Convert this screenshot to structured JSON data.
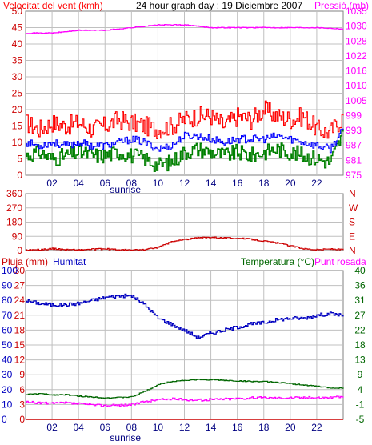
{
  "header": {
    "wind_label": "Velocitat del vent (kmh)",
    "title": "24 hour graph day : 19 Diciembre 2007",
    "pressure_label": "Pressió (mb)"
  },
  "colors": {
    "frame": "#808080",
    "grid": "#c0c0c0",
    "axis_text": "#000080",
    "wind": "#ff0000",
    "gust": "#ff0000",
    "average": "#0000ff",
    "green": "#008000",
    "pressure": "#ff00ff",
    "direction": "#cc0000",
    "humidity": "#0000c0",
    "temperature": "#006600",
    "dewpoint": "#ff00ff",
    "rain": "#cc0000"
  },
  "chart_data": [
    {
      "type": "line",
      "title": "24 hour graph day : 19 Diciembre 2007",
      "ylabel": "Velocitat del vent (kmh)",
      "y2label": "Pressió (mb)",
      "x_hours": [
        0,
        24
      ],
      "x_ticks": [
        "02",
        "04",
        "06",
        "08",
        "10",
        "12",
        "14",
        "16",
        "18",
        "20",
        "22"
      ],
      "sunrise_hour": 7.3,
      "sunrise_label": "sunrise",
      "ylim": [
        0,
        50
      ],
      "y_ticks": [
        "0",
        "5",
        "10",
        "15",
        "20",
        "25",
        "30",
        "35",
        "40",
        "45",
        "50"
      ],
      "y2lim": [
        975,
        1035
      ],
      "y2_ticks": [
        "975",
        "981",
        "987",
        "993",
        "999",
        "1005",
        "1010",
        "1016",
        "1022",
        "1028",
        "1030",
        "1035"
      ],
      "series": [
        {
          "key": "gust",
          "x": [
            0,
            1,
            2,
            3,
            4,
            5,
            6,
            7,
            8,
            9,
            10,
            11,
            12,
            13,
            14,
            15,
            16,
            17,
            18,
            19,
            20,
            21,
            22,
            23,
            24
          ],
          "y": [
            16,
            14,
            16,
            15,
            16,
            14,
            15,
            17,
            16,
            15,
            14,
            15,
            17,
            18,
            18,
            15,
            18,
            17,
            20,
            18,
            17,
            18,
            14,
            13,
            18
          ]
        },
        {
          "key": "average",
          "x": [
            0,
            1,
            2,
            3,
            4,
            5,
            6,
            7,
            8,
            9,
            10,
            11,
            12,
            13,
            14,
            15,
            16,
            17,
            18,
            19,
            20,
            21,
            22,
            23,
            24
          ],
          "y": [
            10,
            9,
            10,
            9,
            10,
            9,
            9,
            10,
            11,
            10,
            8,
            9,
            12,
            12,
            11,
            10,
            11,
            11,
            11,
            12,
            11,
            10,
            9,
            8,
            14
          ]
        },
        {
          "key": "lull",
          "x": [
            0,
            1,
            2,
            3,
            4,
            5,
            6,
            7,
            8,
            9,
            10,
            11,
            12,
            13,
            14,
            15,
            16,
            17,
            18,
            19,
            20,
            21,
            22,
            23,
            24
          ],
          "y": [
            6,
            7,
            5,
            6,
            7,
            6,
            6,
            7,
            6,
            5,
            3,
            4,
            7,
            8,
            7,
            6,
            7,
            6,
            7,
            8,
            7,
            6,
            5,
            4,
            13
          ]
        },
        {
          "key": "pressure",
          "axis": "y2",
          "x": [
            0,
            2,
            4,
            6,
            8,
            10,
            11,
            12,
            14,
            16,
            18,
            20,
            22,
            24
          ],
          "y": [
            1027,
            1027,
            1028,
            1028,
            1029,
            1030,
            1030,
            1030,
            1029,
            1029,
            1029,
            1029,
            1029,
            1028.5
          ]
        }
      ]
    },
    {
      "type": "line",
      "x_hours": [
        0,
        24
      ],
      "ylim": [
        0,
        360
      ],
      "y_ticks": [
        "0",
        "90",
        "180",
        "270",
        "360"
      ],
      "y2_ticks": [
        "N",
        "E",
        "S",
        "W",
        "N"
      ],
      "series": [
        {
          "key": "direction",
          "x": [
            0,
            1,
            2,
            3,
            4,
            5,
            6,
            7,
            8,
            9,
            10,
            11,
            12,
            13,
            14,
            15,
            16,
            17,
            18,
            19,
            20,
            21,
            22,
            23,
            24
          ],
          "y": [
            3,
            5,
            12,
            6,
            4,
            8,
            10,
            5,
            3,
            6,
            20,
            55,
            70,
            80,
            85,
            80,
            78,
            72,
            60,
            48,
            30,
            12,
            5,
            10,
            5
          ]
        }
      ]
    },
    {
      "type": "line",
      "ylabel": "Pluja (mm)",
      "y2label": "Humitat",
      "y3label": "Temperatura (°C)",
      "y4label": "Punt rosada",
      "x_ticks": [
        "02",
        "04",
        "06",
        "08",
        "10",
        "12",
        "14",
        "16",
        "18",
        "20",
        "22"
      ],
      "sunrise_label": "sunrise",
      "sunrise_hour": 7.3,
      "ylim": [
        0,
        30
      ],
      "y_ticks": [
        "0",
        "3",
        "6",
        "9",
        "12",
        "15",
        "18",
        "21",
        "24",
        "27",
        "30"
      ],
      "y2lim": [
        0,
        100
      ],
      "y2_ticks": [
        "0",
        "10",
        "20",
        "30",
        "40",
        "50",
        "60",
        "70",
        "80",
        "90",
        "100"
      ],
      "y3lim": [
        -5,
        40
      ],
      "y3_ticks": [
        "-5",
        "-1",
        "4",
        "9",
        "13",
        "18",
        "22",
        "27",
        "31",
        "36",
        "40"
      ],
      "series": [
        {
          "key": "humidity",
          "axis": "y2",
          "x": [
            0,
            1,
            2,
            3,
            4,
            5,
            6,
            7,
            8,
            9,
            10,
            11,
            12,
            13,
            14,
            15,
            16,
            17,
            18,
            19,
            20,
            21,
            22,
            23,
            24
          ],
          "y": [
            80,
            78,
            77,
            77,
            78,
            80,
            82,
            83,
            83,
            77,
            68,
            64,
            60,
            55,
            58,
            60,
            62,
            64,
            65,
            67,
            68,
            68,
            70,
            71,
            70
          ]
        },
        {
          "key": "temperature",
          "axis": "y3",
          "x": [
            0,
            1,
            2,
            3,
            4,
            5,
            6,
            7,
            8,
            9,
            10,
            11,
            12,
            13,
            14,
            15,
            16,
            17,
            18,
            19,
            20,
            21,
            22,
            23,
            24
          ],
          "y": [
            2.5,
            2.8,
            2.4,
            2.5,
            2.0,
            1.8,
            1.5,
            1.6,
            1.8,
            3.5,
            5.5,
            6.5,
            6.8,
            7.0,
            7.0,
            6.8,
            6.6,
            6.5,
            6.4,
            6.2,
            5.8,
            5.4,
            5.0,
            4.5,
            4.5
          ]
        },
        {
          "key": "dewpoint",
          "axis": "y3",
          "x": [
            0,
            1,
            2,
            3,
            4,
            5,
            6,
            7,
            8,
            9,
            10,
            11,
            12,
            13,
            14,
            15,
            16,
            17,
            18,
            19,
            20,
            21,
            22,
            23,
            24
          ],
          "y": [
            0.2,
            0.0,
            -0.2,
            0.0,
            -0.3,
            -0.6,
            -0.8,
            -0.7,
            -0.5,
            0.3,
            1.0,
            1.2,
            1.0,
            0.8,
            1.0,
            1.2,
            1.3,
            1.5,
            1.6,
            1.5,
            1.6,
            1.6,
            1.6,
            1.7,
            1.7
          ]
        },
        {
          "key": "rain",
          "axis": "y",
          "x": [
            0,
            24
          ],
          "y": [
            0,
            0
          ]
        }
      ]
    }
  ]
}
